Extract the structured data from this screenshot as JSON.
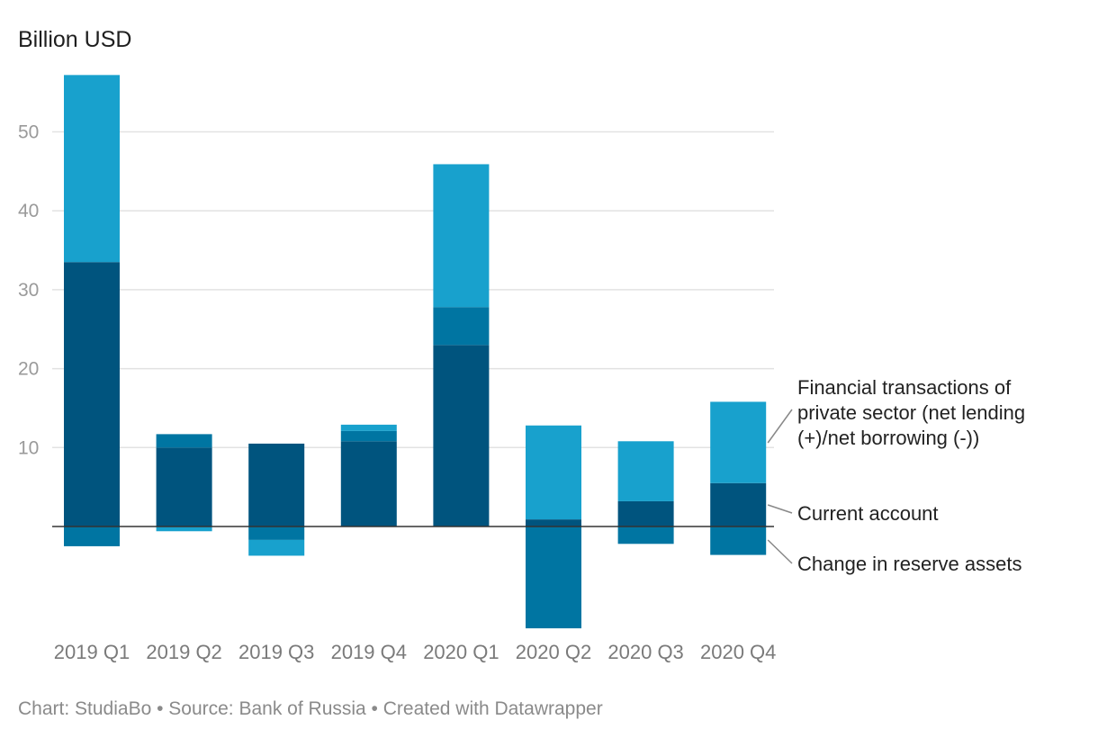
{
  "unit_label": "Billion USD",
  "footer": "Chart: StudiaBo • Source: Bank of Russia • Created with Datawrapper",
  "chart_data": {
    "type": "bar",
    "stacked": true,
    "categories": [
      "2019 Q1",
      "2019 Q2",
      "2019 Q3",
      "2019 Q4",
      "2020 Q1",
      "2020 Q2",
      "2020 Q3",
      "2020 Q4"
    ],
    "ylim": [
      -13,
      57
    ],
    "yticks": [
      10,
      20,
      30,
      40,
      50
    ],
    "grid": true,
    "legend_position": "right (direct labels)",
    "series": [
      {
        "name": "Current account",
        "color": "#00547e",
        "values": [
          33.5,
          10.0,
          10.5,
          10.8,
          23.0,
          0.9,
          3.2,
          5.5
        ]
      },
      {
        "name": "Change in reserve assets",
        "color": "#0075a2",
        "values": [
          -2.5,
          1.7,
          -1.7,
          1.3,
          4.8,
          -12.9,
          -2.2,
          -3.6
        ]
      },
      {
        "name": "Financial transactions of private sector (net lending (+)/net borrowing (-))",
        "color": "#18a1cd",
        "values": [
          23.7,
          -0.6,
          -2.0,
          0.8,
          18.1,
          11.9,
          7.6,
          10.3
        ]
      }
    ],
    "legend_lines": [
      "Financial transactions of",
      "private sector (net lending",
      "(+)/net borrowing (-))"
    ]
  }
}
